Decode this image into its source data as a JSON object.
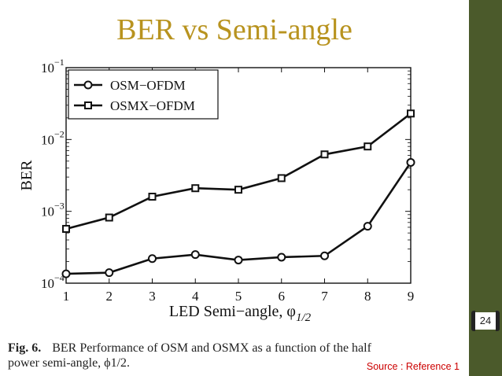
{
  "slide": {
    "title": "BER vs Semi-angle",
    "page_number": "24",
    "source": "Source : Reference 1"
  },
  "caption": {
    "fig_label": "Fig. 6.",
    "text_line1": "BER Performance of OSM and OSMX as a function of the half",
    "text_line2": "power semi-angle, ϕ1/2."
  },
  "chart_data": {
    "type": "line",
    "x": [
      1,
      2,
      3,
      4,
      5,
      6,
      7,
      8,
      9
    ],
    "series": [
      {
        "name": "OSM−OFDM",
        "marker": "circle",
        "values": [
          0.000135,
          0.00014,
          0.00022,
          0.00025,
          0.00021,
          0.00023,
          0.00024,
          0.00062,
          0.0048
        ]
      },
      {
        "name": "OSMX−OFDM",
        "marker": "square",
        "values": [
          0.00057,
          0.00082,
          0.0016,
          0.0021,
          0.002,
          0.0029,
          0.0062,
          0.008,
          0.023
        ]
      }
    ],
    "xlabel": "LED Semi−angle, φ",
    "xlabel_sub": "1/2",
    "ylabel": "BER",
    "xlim": [
      1,
      9
    ],
    "ylim": [
      0.0001,
      0.1
    ],
    "yscale": "log",
    "x_ticks": [
      "1",
      "2",
      "3",
      "4",
      "5",
      "6",
      "7",
      "8",
      "9"
    ],
    "y_ticks": [
      {
        "value": 0.1,
        "base": "10",
        "exp": "−1"
      },
      {
        "value": 0.01,
        "base": "10",
        "exp": "−2"
      },
      {
        "value": 0.001,
        "base": "10",
        "exp": "−3"
      },
      {
        "value": 0.0001,
        "base": "10",
        "exp": "−4"
      }
    ],
    "grid": false,
    "legend_position": "top-left",
    "line_color": "#111111"
  }
}
